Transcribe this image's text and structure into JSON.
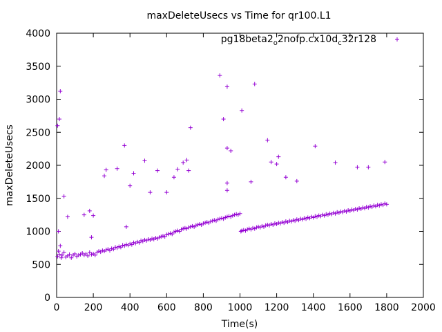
{
  "chart_data": {
    "type": "scatter",
    "title": "maxDeleteUsecs vs Time for qr100.L1",
    "xlabel": "Time(s)",
    "ylabel": "maxDeleteUsecs",
    "xlim": [
      0,
      2000
    ],
    "ylim": [
      0,
      4000
    ],
    "x_ticks": [
      0,
      200,
      400,
      600,
      800,
      1000,
      1200,
      1400,
      1600,
      1800,
      2000
    ],
    "y_ticks": [
      0,
      500,
      1000,
      1500,
      2000,
      2500,
      3000,
      3500,
      4000
    ],
    "grid": false,
    "legend_position": "top-right",
    "marker": "+",
    "color": "#9400d3",
    "series": [
      {
        "name": "pg18beta2_o2nofp.cx10d_c32r128",
        "name_parts": [
          "pg18beta2",
          "o",
          "2nofp.cx10d",
          "c",
          "32r128"
        ],
        "points": [
          [
            5,
            620
          ],
          [
            10,
            700
          ],
          [
            15,
            650
          ],
          [
            20,
            780
          ],
          [
            25,
            600
          ],
          [
            30,
            640
          ],
          [
            40,
            680
          ],
          [
            50,
            610
          ],
          [
            60,
            630
          ],
          [
            70,
            650
          ],
          [
            80,
            600
          ],
          [
            90,
            640
          ],
          [
            100,
            660
          ],
          [
            110,
            620
          ],
          [
            120,
            640
          ],
          [
            130,
            650
          ],
          [
            140,
            670
          ],
          [
            150,
            640
          ],
          [
            160,
            660
          ],
          [
            170,
            630
          ],
          [
            180,
            680
          ],
          [
            190,
            650
          ],
          [
            200,
            660
          ],
          [
            210,
            640
          ],
          [
            220,
            680
          ],
          [
            230,
            700
          ],
          [
            240,
            690
          ],
          [
            250,
            710
          ],
          [
            260,
            700
          ],
          [
            270,
            720
          ],
          [
            280,
            730
          ],
          [
            290,
            710
          ],
          [
            300,
            740
          ],
          [
            310,
            730
          ],
          [
            320,
            760
          ],
          [
            330,
            750
          ],
          [
            340,
            770
          ],
          [
            350,
            760
          ],
          [
            360,
            790
          ],
          [
            370,
            780
          ],
          [
            380,
            800
          ],
          [
            390,
            790
          ],
          [
            400,
            810
          ],
          [
            410,
            800
          ],
          [
            420,
            830
          ],
          [
            430,
            820
          ],
          [
            440,
            840
          ],
          [
            450,
            830
          ],
          [
            460,
            860
          ],
          [
            470,
            850
          ],
          [
            480,
            870
          ],
          [
            490,
            860
          ],
          [
            500,
            880
          ],
          [
            510,
            870
          ],
          [
            520,
            890
          ],
          [
            530,
            880
          ],
          [
            540,
            900
          ],
          [
            550,
            890
          ],
          [
            560,
            910
          ],
          [
            570,
            920
          ],
          [
            580,
            930
          ],
          [
            590,
            920
          ],
          [
            600,
            950
          ],
          [
            610,
            960
          ],
          [
            620,
            970
          ],
          [
            630,
            960
          ],
          [
            640,
            990
          ],
          [
            650,
            1000
          ],
          [
            660,
            1010
          ],
          [
            670,
            1000
          ],
          [
            680,
            1030
          ],
          [
            690,
            1040
          ],
          [
            700,
            1050
          ],
          [
            710,
            1040
          ],
          [
            720,
            1060
          ],
          [
            730,
            1070
          ],
          [
            740,
            1080
          ],
          [
            750,
            1070
          ],
          [
            760,
            1090
          ],
          [
            770,
            1100
          ],
          [
            780,
            1110
          ],
          [
            790,
            1100
          ],
          [
            800,
            1120
          ],
          [
            810,
            1130
          ],
          [
            820,
            1140
          ],
          [
            830,
            1130
          ],
          [
            840,
            1150
          ],
          [
            850,
            1160
          ],
          [
            860,
            1170
          ],
          [
            870,
            1160
          ],
          [
            880,
            1180
          ],
          [
            890,
            1190
          ],
          [
            900,
            1200
          ],
          [
            910,
            1190
          ],
          [
            920,
            1210
          ],
          [
            930,
            1220
          ],
          [
            940,
            1230
          ],
          [
            950,
            1220
          ],
          [
            960,
            1240
          ],
          [
            970,
            1250
          ],
          [
            980,
            1260
          ],
          [
            990,
            1250
          ],
          [
            1000,
            1270
          ],
          [
            1005,
            1000
          ],
          [
            1010,
            1010
          ],
          [
            1020,
            1020
          ],
          [
            1030,
            1010
          ],
          [
            1040,
            1030
          ],
          [
            1050,
            1040
          ],
          [
            1060,
            1030
          ],
          [
            1070,
            1050
          ],
          [
            1080,
            1040
          ],
          [
            1090,
            1060
          ],
          [
            1100,
            1070
          ],
          [
            1110,
            1060
          ],
          [
            1120,
            1080
          ],
          [
            1130,
            1070
          ],
          [
            1140,
            1090
          ],
          [
            1150,
            1100
          ],
          [
            1160,
            1090
          ],
          [
            1170,
            1110
          ],
          [
            1180,
            1100
          ],
          [
            1190,
            1120
          ],
          [
            1200,
            1110
          ],
          [
            1210,
            1130
          ],
          [
            1220,
            1120
          ],
          [
            1230,
            1140
          ],
          [
            1240,
            1130
          ],
          [
            1250,
            1150
          ],
          [
            1260,
            1140
          ],
          [
            1270,
            1160
          ],
          [
            1280,
            1150
          ],
          [
            1290,
            1170
          ],
          [
            1300,
            1160
          ],
          [
            1310,
            1180
          ],
          [
            1320,
            1170
          ],
          [
            1330,
            1190
          ],
          [
            1340,
            1180
          ],
          [
            1350,
            1200
          ],
          [
            1360,
            1190
          ],
          [
            1370,
            1210
          ],
          [
            1380,
            1200
          ],
          [
            1390,
            1220
          ],
          [
            1400,
            1210
          ],
          [
            1410,
            1230
          ],
          [
            1420,
            1220
          ],
          [
            1430,
            1240
          ],
          [
            1440,
            1230
          ],
          [
            1450,
            1250
          ],
          [
            1460,
            1240
          ],
          [
            1470,
            1260
          ],
          [
            1480,
            1250
          ],
          [
            1490,
            1270
          ],
          [
            1500,
            1260
          ],
          [
            1510,
            1280
          ],
          [
            1520,
            1270
          ],
          [
            1530,
            1290
          ],
          [
            1540,
            1280
          ],
          [
            1550,
            1300
          ],
          [
            1560,
            1290
          ],
          [
            1570,
            1310
          ],
          [
            1580,
            1300
          ],
          [
            1590,
            1320
          ],
          [
            1600,
            1310
          ],
          [
            1610,
            1330
          ],
          [
            1620,
            1320
          ],
          [
            1630,
            1340
          ],
          [
            1640,
            1330
          ],
          [
            1650,
            1350
          ],
          [
            1660,
            1340
          ],
          [
            1670,
            1360
          ],
          [
            1680,
            1350
          ],
          [
            1690,
            1370
          ],
          [
            1700,
            1360
          ],
          [
            1710,
            1380
          ],
          [
            1720,
            1370
          ],
          [
            1730,
            1390
          ],
          [
            1740,
            1380
          ],
          [
            1750,
            1400
          ],
          [
            1760,
            1390
          ],
          [
            1770,
            1410
          ],
          [
            1780,
            1400
          ],
          [
            1790,
            1420
          ],
          [
            1800,
            1410
          ],
          [
            20,
            3120
          ],
          [
            15,
            2700
          ],
          [
            5,
            2600
          ],
          [
            10,
            1000
          ],
          [
            40,
            1530
          ],
          [
            60,
            1220
          ],
          [
            150,
            1250
          ],
          [
            180,
            1310
          ],
          [
            190,
            910
          ],
          [
            200,
            1240
          ],
          [
            260,
            1840
          ],
          [
            270,
            1930
          ],
          [
            330,
            1950
          ],
          [
            370,
            2300
          ],
          [
            380,
            1070
          ],
          [
            400,
            1690
          ],
          [
            420,
            1880
          ],
          [
            480,
            2070
          ],
          [
            510,
            1590
          ],
          [
            550,
            1920
          ],
          [
            600,
            1590
          ],
          [
            640,
            1820
          ],
          [
            660,
            1940
          ],
          [
            690,
            2040
          ],
          [
            710,
            2080
          ],
          [
            720,
            1920
          ],
          [
            730,
            2570
          ],
          [
            890,
            3360
          ],
          [
            910,
            2700
          ],
          [
            930,
            3190
          ],
          [
            930,
            2260
          ],
          [
            950,
            2220
          ],
          [
            930,
            1730
          ],
          [
            930,
            1620
          ],
          [
            1010,
            2830
          ],
          [
            1060,
            1750
          ],
          [
            1080,
            3230
          ],
          [
            1150,
            2380
          ],
          [
            1170,
            2050
          ],
          [
            1210,
            2130
          ],
          [
            1200,
            2020
          ],
          [
            1250,
            1820
          ],
          [
            1310,
            1760
          ],
          [
            1410,
            2290
          ],
          [
            1520,
            2040
          ],
          [
            1640,
            1970
          ],
          [
            1700,
            1970
          ],
          [
            1790,
            2050
          ]
        ]
      }
    ]
  }
}
